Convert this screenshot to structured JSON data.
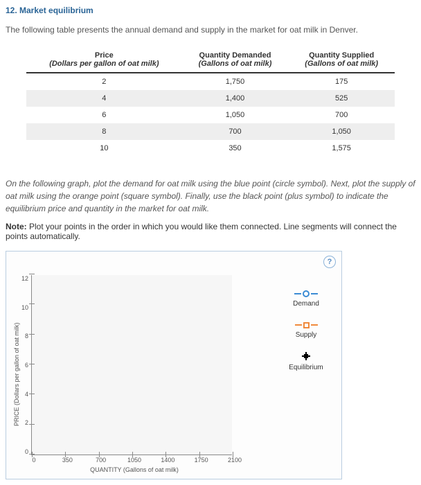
{
  "question": {
    "number_title": "12. Market equilibrium"
  },
  "intro": "The following table presents the annual demand and supply in the market for oat milk in Denver.",
  "table": {
    "headers": [
      {
        "main": "Price",
        "sub": "(Dollars per gallon of oat milk)"
      },
      {
        "main": "Quantity Demanded",
        "sub": "(Gallons of oat milk)"
      },
      {
        "main": "Quantity Supplied",
        "sub": "(Gallons of oat milk)"
      }
    ],
    "rows": [
      {
        "price": "2",
        "qd": "1,750",
        "qs": "175"
      },
      {
        "price": "4",
        "qd": "1,400",
        "qs": "525"
      },
      {
        "price": "6",
        "qd": "1,050",
        "qs": "700"
      },
      {
        "price": "8",
        "qd": "700",
        "qs": "1,050"
      },
      {
        "price": "10",
        "qd": "350",
        "qs": "1,575"
      }
    ]
  },
  "instructions": "On the following graph, plot the demand for oat milk using the blue point (circle symbol). Next, plot the supply of oat milk using the orange point (square symbol). Finally, use the black point (plus symbol) to indicate the equilibrium price and quantity in the market for oat milk.",
  "note_label": "Note:",
  "note_text": " Plot your points in the order in which you would like them connected. Line segments will connect the points automatically.",
  "help": "?",
  "chart": {
    "y_label": "PRICE (Dollars per gallon of oat milk)",
    "x_label": "QUANTITY (Gallons of oat milk)",
    "y_ticks": [
      "12",
      "10",
      "8",
      "6",
      "4",
      "2",
      "0"
    ],
    "x_ticks": [
      "0",
      "350",
      "700",
      "1050",
      "1400",
      "1750",
      "2100"
    ],
    "xlim": [
      0,
      2100
    ],
    "ylim": [
      0,
      12
    ],
    "plot_bg": "#f6f6f6",
    "axis_color": "#888888"
  },
  "legend": {
    "demand": {
      "label": "Demand",
      "color": "#3b8bd4"
    },
    "supply": {
      "label": "Supply",
      "color": "#f08a3c"
    },
    "equilibrium": {
      "label": "Equilibrium",
      "color": "#000000"
    }
  }
}
